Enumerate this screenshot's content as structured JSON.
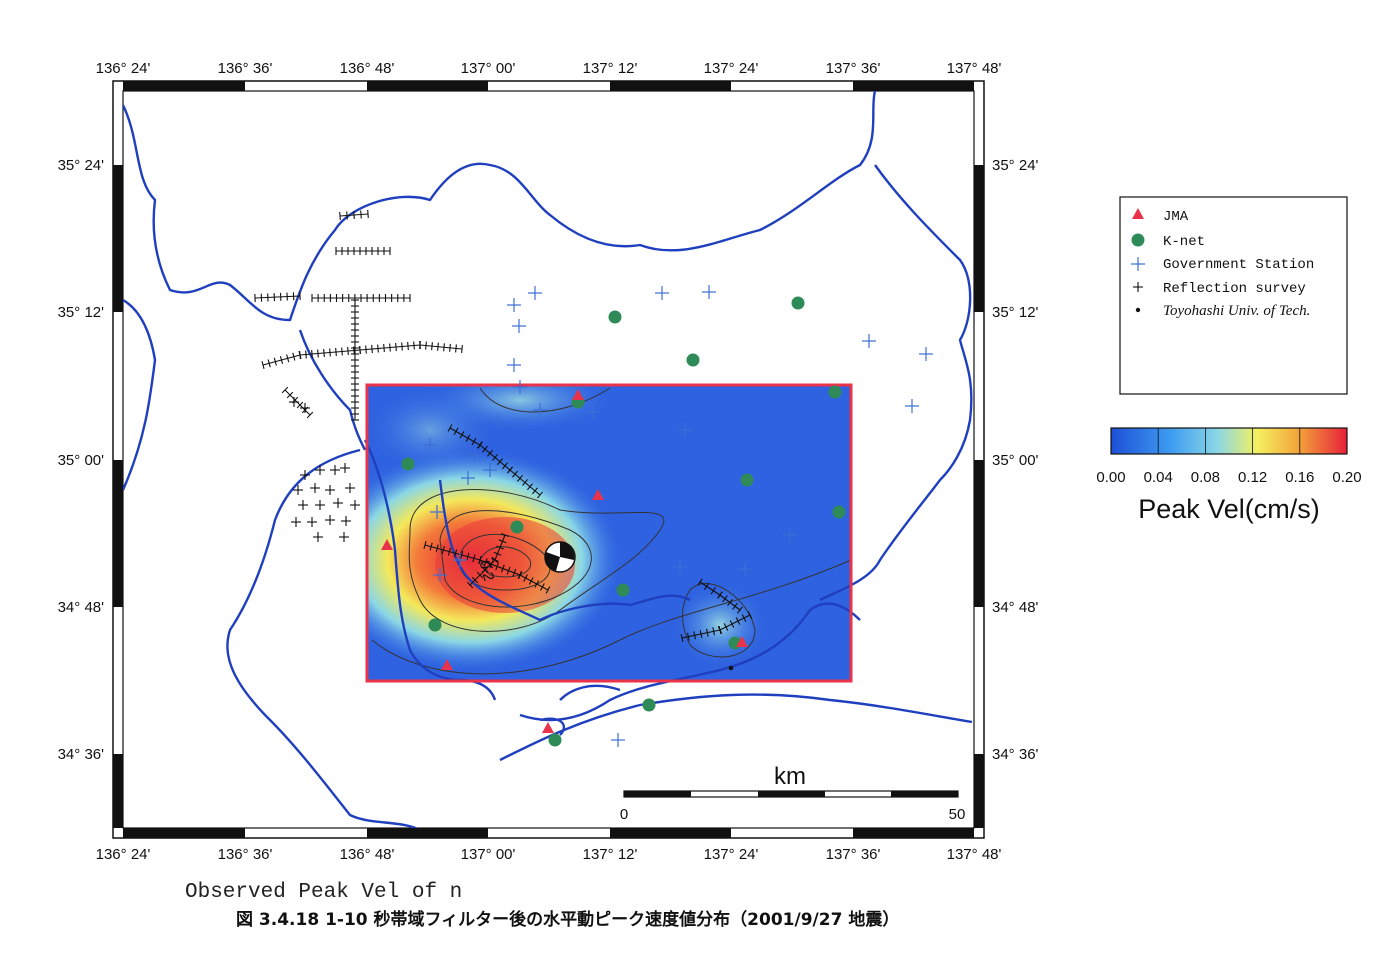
{
  "map": {
    "lon_ticks": [
      "136° 24'",
      "136° 36'",
      "136° 48'",
      "137° 00'",
      "137° 12'",
      "137° 24'",
      "137° 36'",
      "137° 48'"
    ],
    "lat_ticks": [
      "35° 24'",
      "35° 12'",
      "35° 00'",
      "34° 48'",
      "34° 36'"
    ],
    "contour_label": "0.2",
    "scale_bar": {
      "unit": "km",
      "start": "0",
      "end": "50"
    }
  },
  "legend": {
    "items": [
      {
        "label": "JMA",
        "symbol": "red-triangle",
        "color": "#e8334a"
      },
      {
        "label": "K-net",
        "symbol": "green-circle",
        "color": "#2e8b57"
      },
      {
        "label": "Government Station",
        "symbol": "blue-plus",
        "color": "#3b6fd6"
      },
      {
        "label": "Reflection survey",
        "symbol": "black-plus",
        "color": "#111111"
      },
      {
        "label": "Toyohashi Univ. of Tech.",
        "symbol": "black-dot",
        "color": "#111111"
      }
    ]
  },
  "colorbar": {
    "ticks": [
      "0.00",
      "0.04",
      "0.08",
      "0.12",
      "0.16",
      "0.20"
    ],
    "title": "Peak Vel(cm/s)",
    "colors": [
      "#1e4fd8",
      "#3d9bf0",
      "#8ad7e6",
      "#f4f060",
      "#f3a13a",
      "#e8203a"
    ]
  },
  "caption": {
    "english": "Observed Peak Vel of n",
    "japanese": "図 3.4.18  1-10 秒帯域フィルター後の水平動ピーク速度値分布（2001/9/27 地震）"
  },
  "colors": {
    "coast": "#1f3fbf",
    "frame_red": "#e8334a",
    "jma": "#e8334a",
    "knet": "#2e8b57",
    "gov": "#3b6fd6"
  }
}
